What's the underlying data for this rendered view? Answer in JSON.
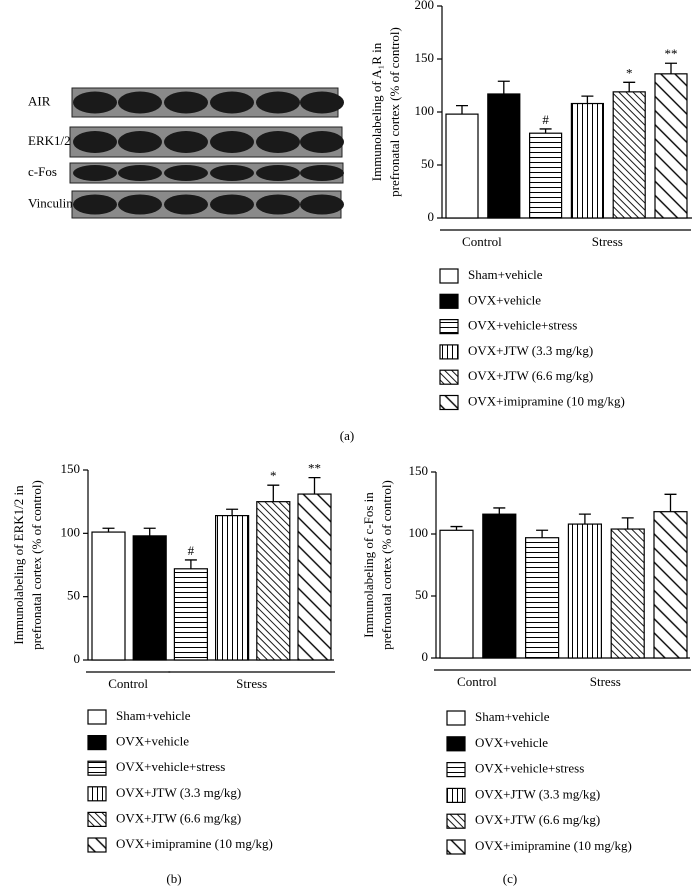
{
  "blot": {
    "labels": [
      "AIR",
      "ERK1/2",
      "c-Fos",
      "Vinculin"
    ]
  },
  "chart_data": [
    {
      "type": "bar",
      "panel_label": "(a)",
      "ylabel": [
        "Immunolabeling of A₁R in",
        "prefronatal cortex (% of control)"
      ],
      "ylim": [
        0,
        200
      ],
      "yticks": [
        0,
        50,
        100,
        150,
        200
      ],
      "groups": [
        {
          "label": "Control",
          "count": 2
        },
        {
          "label": "Stress",
          "count": 4
        }
      ],
      "series": [
        {
          "name": "Sham+vehicle",
          "color": "#000000",
          "pattern": "none",
          "values": [
            98
          ],
          "errors": [
            8
          ]
        },
        {
          "name": "OVX+vehicle",
          "color": "#000000",
          "pattern": "solid",
          "values": [
            117
          ],
          "errors": [
            12
          ]
        },
        {
          "name": "OVX+vehicle+stress",
          "color": "#000000",
          "pattern": "horizontal",
          "values": [
            80
          ],
          "errors": [
            4
          ],
          "annotation": "#"
        },
        {
          "name": "OVX+JTW (3.3 mg/kg)",
          "color": "#000000",
          "pattern": "vertical",
          "values": [
            108
          ],
          "errors": [
            7
          ]
        },
        {
          "name": "OVX+JTW (6.6 mg/kg)",
          "color": "#000000",
          "pattern": "diagonal-fine",
          "values": [
            119
          ],
          "errors": [
            9
          ],
          "annotation": "*"
        },
        {
          "name": "OVX+imipramine (10 mg/kg)",
          "color": "#000000",
          "pattern": "diagonal",
          "values": [
            136
          ],
          "errors": [
            10
          ],
          "annotation": "**"
        }
      ]
    },
    {
      "type": "bar",
      "panel_label": "(b)",
      "ylabel": [
        "Immunolabeling of ERK1/2 in",
        "prefronatal cortex (% of control)"
      ],
      "ylim": [
        0,
        150
      ],
      "yticks": [
        0,
        50,
        100,
        150
      ],
      "groups": [
        {
          "label": "Control",
          "count": 2
        },
        {
          "label": "Stress",
          "count": 4
        }
      ],
      "series": [
        {
          "name": "Sham+vehicle",
          "color": "#000000",
          "pattern": "none",
          "values": [
            101
          ],
          "errors": [
            3
          ]
        },
        {
          "name": "OVX+vehicle",
          "color": "#000000",
          "pattern": "solid",
          "values": [
            98
          ],
          "errors": [
            6
          ]
        },
        {
          "name": "OVX+vehicle+stress",
          "color": "#000000",
          "pattern": "horizontal",
          "values": [
            72
          ],
          "errors": [
            7
          ],
          "annotation": "#"
        },
        {
          "name": "OVX+JTW (3.3 mg/kg)",
          "color": "#000000",
          "pattern": "vertical",
          "values": [
            114
          ],
          "errors": [
            5
          ]
        },
        {
          "name": "OVX+JTW (6.6 mg/kg)",
          "color": "#000000",
          "pattern": "diagonal-fine",
          "values": [
            125
          ],
          "errors": [
            13
          ],
          "annotation": "*"
        },
        {
          "name": "OVX+imipramine (10 mg/kg)",
          "color": "#000000",
          "pattern": "diagonal",
          "values": [
            131
          ],
          "errors": [
            13
          ],
          "annotation": "**"
        }
      ]
    },
    {
      "type": "bar",
      "panel_label": "(c)",
      "ylabel": [
        "Immunolabeling of c-Fos in",
        "prefronatal cortex (% of control)"
      ],
      "ylim": [
        0,
        150
      ],
      "yticks": [
        0,
        50,
        100,
        150
      ],
      "groups": [
        {
          "label": "Control",
          "count": 2
        },
        {
          "label": "Stress",
          "count": 4
        }
      ],
      "series": [
        {
          "name": "Sham+vehicle",
          "color": "#000000",
          "pattern": "none",
          "values": [
            103
          ],
          "errors": [
            3
          ]
        },
        {
          "name": "OVX+vehicle",
          "color": "#000000",
          "pattern": "solid",
          "values": [
            116
          ],
          "errors": [
            5
          ]
        },
        {
          "name": "OVX+vehicle+stress",
          "color": "#000000",
          "pattern": "horizontal",
          "values": [
            97
          ],
          "errors": [
            6
          ]
        },
        {
          "name": "OVX+JTW (3.3 mg/kg)",
          "color": "#000000",
          "pattern": "vertical",
          "values": [
            108
          ],
          "errors": [
            8
          ]
        },
        {
          "name": "OVX+JTW (6.6 mg/kg)",
          "color": "#000000",
          "pattern": "diagonal-fine",
          "values": [
            104
          ],
          "errors": [
            9
          ]
        },
        {
          "name": "OVX+imipramine (10 mg/kg)",
          "color": "#000000",
          "pattern": "diagonal",
          "values": [
            118
          ],
          "errors": [
            14
          ]
        }
      ]
    }
  ]
}
